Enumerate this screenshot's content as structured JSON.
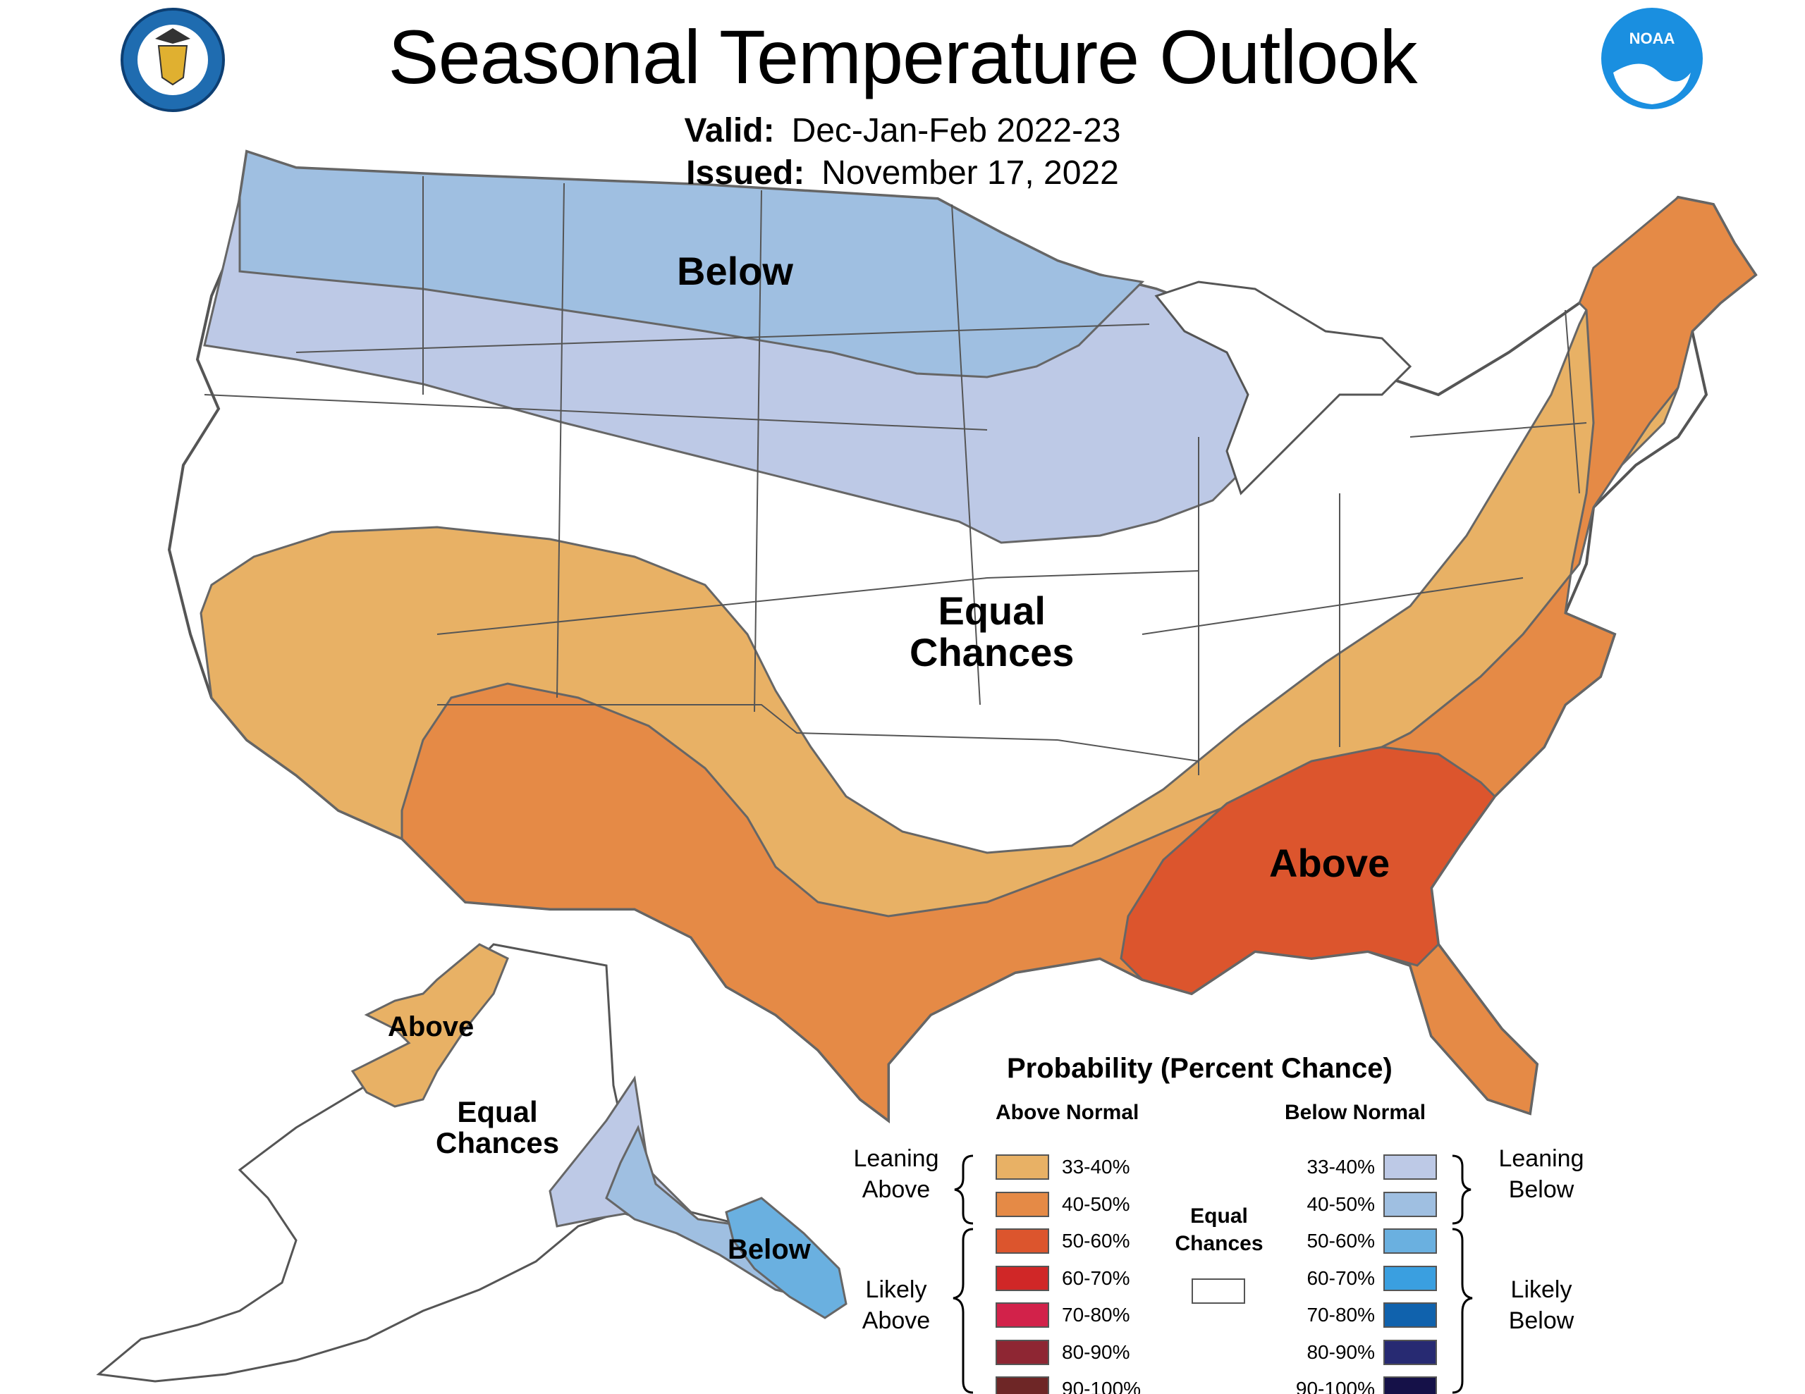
{
  "header": {
    "title": "Seasonal Temperature Outlook",
    "valid_label": "Valid:",
    "valid_value": "Dec-Jan-Feb 2022-23",
    "issued_label": "Issued:",
    "issued_value": "November 17, 2022"
  },
  "logos": {
    "left": "department-of-commerce-seal-icon",
    "right": "noaa-logo-icon"
  },
  "map_labels": {
    "conus_below": "Below",
    "conus_equal_line1": "Equal",
    "conus_equal_line2": "Chances",
    "conus_above": "Above",
    "alaska_above": "Above",
    "alaska_equal_line1": "Equal",
    "alaska_equal_line2": "Chances",
    "alaska_below": "Below"
  },
  "legend": {
    "title": "Probability (Percent Chance)",
    "above_header": "Above Normal",
    "below_header": "Below Normal",
    "leaning_above_line1": "Leaning",
    "leaning_above_line2": "Above",
    "likely_above_line1": "Likely",
    "likely_above_line2": "Above",
    "leaning_below_line1": "Leaning",
    "leaning_below_line2": "Below",
    "likely_below_line1": "Likely",
    "likely_below_line2": "Below",
    "equal_line1": "Equal",
    "equal_line2": "Chances",
    "equal_color": "#ffffff",
    "above": [
      {
        "label": "33-40%",
        "color": "#e8b165"
      },
      {
        "label": "40-50%",
        "color": "#e58a46"
      },
      {
        "label": "50-60%",
        "color": "#dc552d"
      },
      {
        "label": "60-70%",
        "color": "#d02727"
      },
      {
        "label": "70-80%",
        "color": "#d2224a"
      },
      {
        "label": "80-90%",
        "color": "#8e2633"
      },
      {
        "label": "90-100%",
        "color": "#6e2626"
      }
    ],
    "below": [
      {
        "label": "33-40%",
        "color": "#bdc9e6"
      },
      {
        "label": "40-50%",
        "color": "#9fbfe1"
      },
      {
        "label": "50-60%",
        "color": "#6ab0e0"
      },
      {
        "label": "60-70%",
        "color": "#3a9fe0"
      },
      {
        "label": "70-80%",
        "color": "#1062ad"
      },
      {
        "label": "80-90%",
        "color": "#272a72"
      },
      {
        "label": "90-100%",
        "color": "#151148"
      }
    ]
  }
}
